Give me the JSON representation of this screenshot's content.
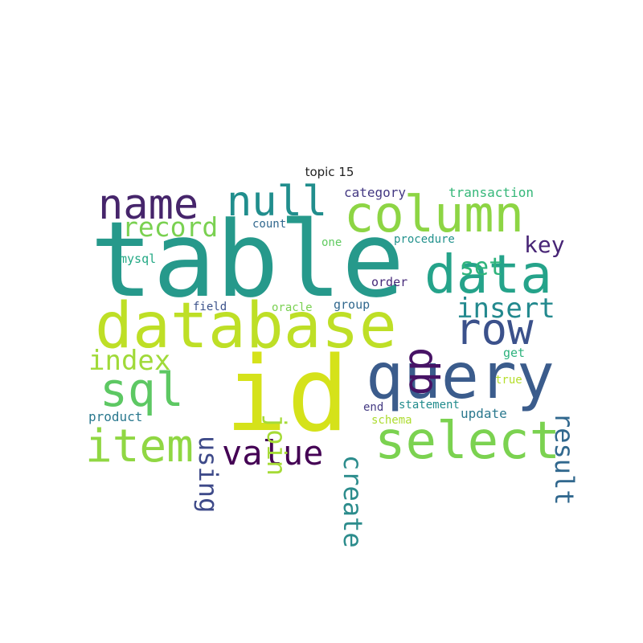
{
  "chart_data": {
    "type": "wordcloud",
    "title": "topic 15",
    "words": [
      {
        "text": "table",
        "color": "#26998b"
      },
      {
        "text": "id",
        "color": "#d5e21a"
      },
      {
        "text": "database",
        "color": "#bedf26"
      },
      {
        "text": "query",
        "color": "#3b5c8c"
      },
      {
        "text": "column",
        "color": "#8dd544"
      },
      {
        "text": "data",
        "color": "#25a38a"
      },
      {
        "text": "select",
        "color": "#7bd250"
      },
      {
        "text": "row",
        "color": "#3b518b"
      },
      {
        "text": "name",
        "color": "#46256b"
      },
      {
        "text": "item",
        "color": "#90d743"
      },
      {
        "text": "sql",
        "color": "#5dc863"
      },
      {
        "text": "null",
        "color": "#218e8d"
      },
      {
        "text": "value",
        "color": "#440154"
      },
      {
        "text": "db",
        "color": "#471365"
      },
      {
        "text": "insert",
        "color": "#23898e"
      },
      {
        "text": "create",
        "color": "#2c8c8c"
      },
      {
        "text": "index",
        "color": "#a0da39"
      },
      {
        "text": "record",
        "color": "#7ad151"
      },
      {
        "text": "result",
        "color": "#31688e"
      },
      {
        "text": "join",
        "color": "#a5db36"
      },
      {
        "text": "using",
        "color": "#3e4a89"
      },
      {
        "text": "key",
        "color": "#482576"
      },
      {
        "text": "set",
        "color": "#2fb47c"
      },
      {
        "text": "category",
        "color": "#443983"
      },
      {
        "text": "transaction",
        "color": "#35b779"
      },
      {
        "text": "count",
        "color": "#31688e"
      },
      {
        "text": "one",
        "color": "#60ca60"
      },
      {
        "text": "procedure",
        "color": "#21918c"
      },
      {
        "text": "mysql",
        "color": "#22a884"
      },
      {
        "text": "order",
        "color": "#472a7a"
      },
      {
        "text": "field",
        "color": "#3b528b"
      },
      {
        "text": "oracle",
        "color": "#7ad151"
      },
      {
        "text": "group",
        "color": "#31688e"
      },
      {
        "text": "get",
        "color": "#2db27d"
      },
      {
        "text": "true",
        "color": "#b5de2b"
      },
      {
        "text": "statement",
        "color": "#228c8d"
      },
      {
        "text": "end",
        "color": "#443a83"
      },
      {
        "text": "schema",
        "color": "#addc30"
      },
      {
        "text": "product",
        "color": "#2a788e"
      },
      {
        "text": "update",
        "color": "#2a788e"
      }
    ]
  }
}
